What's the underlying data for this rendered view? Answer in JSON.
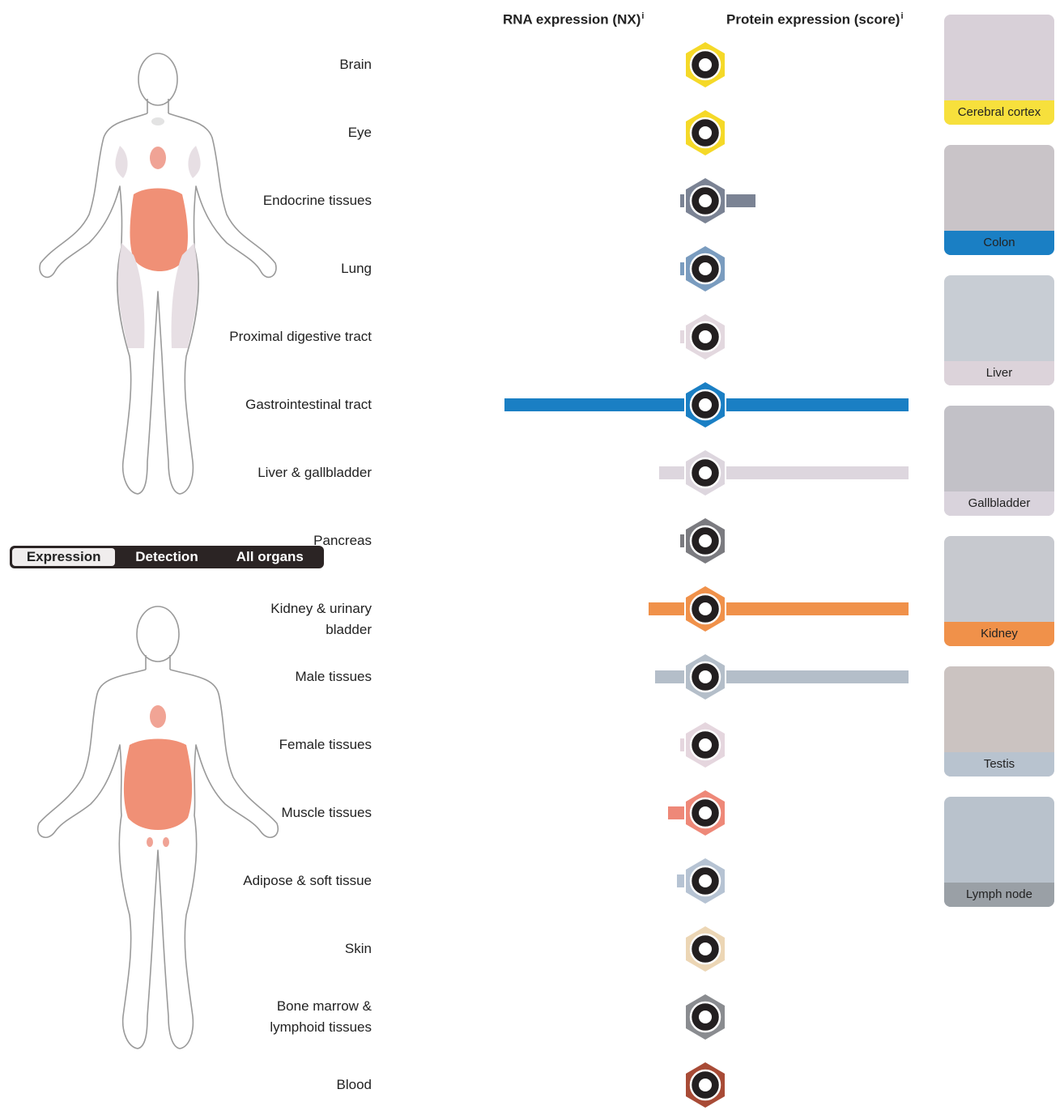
{
  "headers": {
    "rna": "RNA expression (NX)",
    "protein": "Protein expression (score)",
    "info_mark": "i"
  },
  "toggle": {
    "options": [
      "Expression",
      "Detection",
      "All organs"
    ],
    "active": "Expression"
  },
  "tissues": [
    {
      "label": "Brain",
      "color": "#f5d928",
      "rna": 0.0,
      "protein": 0.0,
      "icon": "brain-icon"
    },
    {
      "label": "Eye",
      "color": "#f5d928",
      "rna": 0.0,
      "protein": 0.0,
      "icon": "eye-icon"
    },
    {
      "label": "Endocrine tissues",
      "color": "#7b8394",
      "rna": 0.02,
      "protein": 0.16,
      "icon": "thyroid-icon"
    },
    {
      "label": "Lung",
      "color": "#7a9cbf",
      "rna": 0.01,
      "protein": 0.0,
      "icon": "lung-icon"
    },
    {
      "label": "Proximal digestive tract",
      "color": "#e3d8df",
      "rna": 0.01,
      "protein": 0.0,
      "icon": "head-icon"
    },
    {
      "label": "Gastrointestinal tract",
      "color": "#1a7fc4",
      "rna": 1.0,
      "protein": 1.0,
      "icon": "stomach-icon"
    },
    {
      "label": "Liver & gallbladder",
      "color": "#ddd6de",
      "rna": 0.14,
      "protein": 1.0,
      "icon": "liver-icon"
    },
    {
      "label": "Pancreas",
      "color": "#7b7b80",
      "rna": 0.01,
      "protein": 0.0,
      "icon": "pancreas-icon"
    },
    {
      "label": "Kidney & urinary bladder",
      "color": "#f0914a",
      "rna": 0.2,
      "protein": 1.0,
      "icon": "kidney-icon"
    },
    {
      "label": "Male tissues",
      "color": "#b4bec9",
      "rna": 0.16,
      "protein": 1.0,
      "icon": "male-icon"
    },
    {
      "label": "Female tissues",
      "color": "#e5d6de",
      "rna": 0.01,
      "protein": 0.0,
      "icon": "uterus-icon"
    },
    {
      "label": "Muscle tissues",
      "color": "#ee8878",
      "rna": 0.09,
      "protein": 0.0,
      "icon": "heart-icon"
    },
    {
      "label": "Adipose & soft tissue",
      "color": "#b6c3d3",
      "rna": 0.04,
      "protein": 0.0,
      "icon": "adipose-icon"
    },
    {
      "label": "Skin",
      "color": "#ecd6b5",
      "rna": 0.0,
      "protein": 0.0,
      "icon": "skin-icon"
    },
    {
      "label": "Bone marrow & lymphoid tissues",
      "color": "#8a8c90",
      "rna": 0.0,
      "protein": 0.0,
      "icon": "lymph-icon"
    },
    {
      "label": "Blood",
      "color": "#a84b36",
      "rna": 0.0,
      "protein": 0.0,
      "icon": "blood-icon"
    }
  ],
  "thumbnails": [
    {
      "caption": "Cerebral cortex",
      "color": "#f7e03c",
      "bg": "#d8d0d8"
    },
    {
      "caption": "Colon",
      "color": "#1a7fc4",
      "bg": "#c9c4c8"
    },
    {
      "caption": "Liver",
      "color": "#dcd3da",
      "bg": "#c8cdd4"
    },
    {
      "caption": "Gallbladder",
      "color": "#d9d3dc",
      "bg": "#c2c1c7"
    },
    {
      "caption": "Kidney",
      "color": "#f0914a",
      "bg": "#c7c9cf"
    },
    {
      "caption": "Testis",
      "color": "#b8c3cf",
      "bg": "#cbc3c1"
    },
    {
      "caption": "Lymph node",
      "color": "#9aa0a6",
      "bg": "#b9c2cc"
    }
  ]
}
